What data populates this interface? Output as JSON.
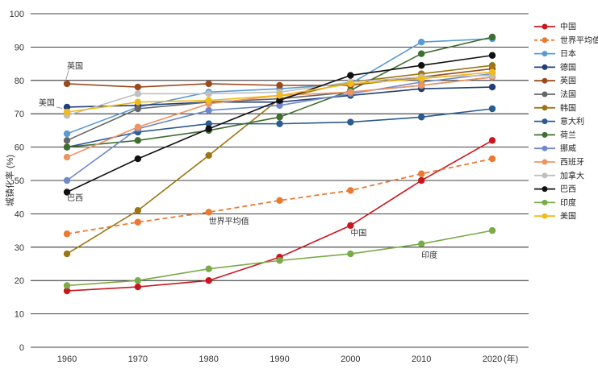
{
  "chart_data": {
    "type": "line",
    "xlabel": "",
    "x_unit": "(年)",
    "ylabel": "城镇化率 (%)",
    "ylim": [
      0,
      100
    ],
    "yticks": [
      0,
      10,
      20,
      30,
      40,
      50,
      60,
      70,
      80,
      90,
      100
    ],
    "x": [
      1960,
      1970,
      1980,
      1990,
      2000,
      2010,
      2020
    ],
    "grid": "horizontal",
    "legend_position": "right",
    "series": [
      {
        "name": "中国",
        "color": "#c8181e",
        "dashed": false,
        "values": [
          16.9,
          18.1,
          20.0,
          27.0,
          36.5,
          50.0,
          62.0
        ]
      },
      {
        "name": "世界平均值",
        "color": "#ea7a32",
        "dashed": true,
        "values": [
          34.0,
          37.5,
          40.5,
          44.0,
          47.0,
          52.0,
          56.5
        ]
      },
      {
        "name": "日本",
        "color": "#5a9bd4",
        "dashed": false,
        "values": [
          64.0,
          72.0,
          76.5,
          77.5,
          79.0,
          91.5,
          92.5
        ]
      },
      {
        "name": "德国",
        "color": "#1f3f78",
        "dashed": false,
        "values": [
          72.0,
          72.5,
          73.5,
          73.5,
          75.5,
          77.5,
          78.0
        ]
      },
      {
        "name": "英国",
        "color": "#9c4a1d",
        "dashed": false,
        "values": [
          79.0,
          78.0,
          79.0,
          78.5,
          78.5,
          81.0,
          83.5
        ]
      },
      {
        "name": "法国",
        "color": "#666666",
        "dashed": false,
        "values": [
          62.0,
          71.5,
          73.5,
          74.5,
          76.5,
          78.5,
          81.0
        ]
      },
      {
        "name": "韩国",
        "color": "#9b7614",
        "dashed": false,
        "values": [
          28.0,
          41.0,
          57.5,
          74.5,
          79.5,
          82.0,
          84.5
        ]
      },
      {
        "name": "意大利",
        "color": "#2c5b8f",
        "dashed": false,
        "values": [
          60.0,
          64.5,
          67.0,
          67.0,
          67.5,
          69.0,
          71.5
        ]
      },
      {
        "name": "荷兰",
        "color": "#3f6e30",
        "dashed": false,
        "values": [
          60.0,
          62.0,
          65.0,
          69.0,
          77.0,
          88.0,
          93.0
        ]
      },
      {
        "name": "挪威",
        "color": "#6f89c9",
        "dashed": false,
        "values": [
          50.0,
          65.5,
          71.0,
          72.5,
          76.0,
          79.5,
          82.0
        ]
      },
      {
        "name": "西班牙",
        "color": "#ee9460",
        "dashed": false,
        "values": [
          57.0,
          66.0,
          73.0,
          75.5,
          76.5,
          78.5,
          81.0
        ]
      },
      {
        "name": "加拿大",
        "color": "#bfbfbf",
        "dashed": false,
        "values": [
          69.5,
          76.0,
          76.0,
          76.5,
          79.5,
          81.0,
          81.5
        ]
      },
      {
        "name": "巴西",
        "color": "#111111",
        "dashed": false,
        "values": [
          46.5,
          56.5,
          65.5,
          74.0,
          81.5,
          84.5,
          87.5
        ]
      },
      {
        "name": "印度",
        "color": "#79ab48",
        "dashed": false,
        "values": [
          18.5,
          20.0,
          23.5,
          26.0,
          28.0,
          31.0,
          35.0
        ]
      },
      {
        "name": "美国",
        "color": "#f0bb1d",
        "dashed": false,
        "values": [
          70.5,
          73.5,
          74.0,
          75.5,
          79.0,
          80.5,
          82.5
        ]
      }
    ],
    "annotations": [
      {
        "text": "英国",
        "series": "英国",
        "x": 1960,
        "y": 83.5
      },
      {
        "text": "美国",
        "series": "美国",
        "x": 1956,
        "y": 72.5
      },
      {
        "text": "巴西",
        "series": "巴西",
        "x": 1960,
        "y": 44.0
      },
      {
        "text": "世界平均值",
        "series": "世界平均值",
        "x": 1980,
        "y": 37.0
      },
      {
        "text": "中国",
        "series": "中国",
        "x": 2000,
        "y": 33.5
      },
      {
        "text": "印度",
        "series": "印度",
        "x": 2010,
        "y": 26.8
      }
    ]
  }
}
